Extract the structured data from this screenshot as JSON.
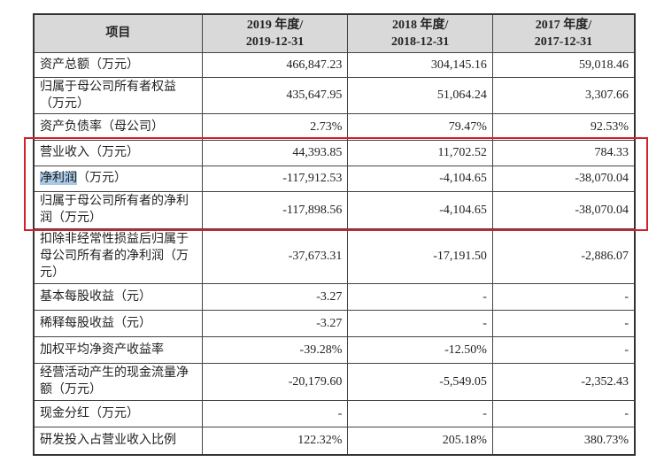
{
  "table": {
    "headers": [
      {
        "line1": "项目",
        "line2": ""
      },
      {
        "line1": "2019 年度/",
        "line2": "2019-12-31"
      },
      {
        "line1": "2018 年度/",
        "line2": "2018-12-31"
      },
      {
        "line1": "2017 年度/",
        "line2": "2017-12-31"
      }
    ],
    "rows": [
      {
        "label": "资产总额（万元）",
        "values": [
          "466,847.23",
          "304,145.16",
          "59,018.46"
        ]
      },
      {
        "label": "归属于母公司所有者权益（万元）",
        "values": [
          "435,647.95",
          "51,064.24",
          "3,307.66"
        ]
      },
      {
        "label": "资产负债率（母公司）",
        "values": [
          "2.73%",
          "79.47%",
          "92.53%"
        ]
      },
      {
        "label": "营业收入（万元）",
        "values": [
          "44,393.85",
          "11,702.52",
          "784.33"
        ]
      },
      {
        "label_highlight": "净利润",
        "label": "（万元）",
        "values": [
          "-117,912.53",
          "-4,104.65",
          "-38,070.04"
        ]
      },
      {
        "label": "归属于母公司所有者的净利润（万元）",
        "values": [
          "-117,898.56",
          "-4,104.65",
          "-38,070.04"
        ]
      },
      {
        "label": "扣除非经常性损益后归属于母公司所有者的净利润（万元）",
        "values": [
          "-37,673.31",
          "-17,191.50",
          "-2,886.07"
        ]
      },
      {
        "label": "基本每股收益（元）",
        "values": [
          "-3.27",
          "-",
          "-"
        ]
      },
      {
        "label": "稀释每股收益（元）",
        "values": [
          "-3.27",
          "-",
          "-"
        ]
      },
      {
        "label": "加权平均净资产收益率",
        "values": [
          "-39.28%",
          "-12.50%",
          "-"
        ]
      },
      {
        "label": "经营活动产生的现金流量净额（万元）",
        "values": [
          "-20,179.60",
          "-5,549.05",
          "-2,352.43"
        ]
      },
      {
        "label": "现金分红（万元）",
        "values": [
          "-",
          "-",
          "-"
        ]
      },
      {
        "label": "研发投入占营业收入比例",
        "values": [
          "122.32%",
          "205.18%",
          "380.73%"
        ]
      }
    ]
  },
  "colors": {
    "highlight_box": "#d0212f",
    "text_highlight": "#a8c8e6",
    "header_bg": "#d9d9d9"
  }
}
